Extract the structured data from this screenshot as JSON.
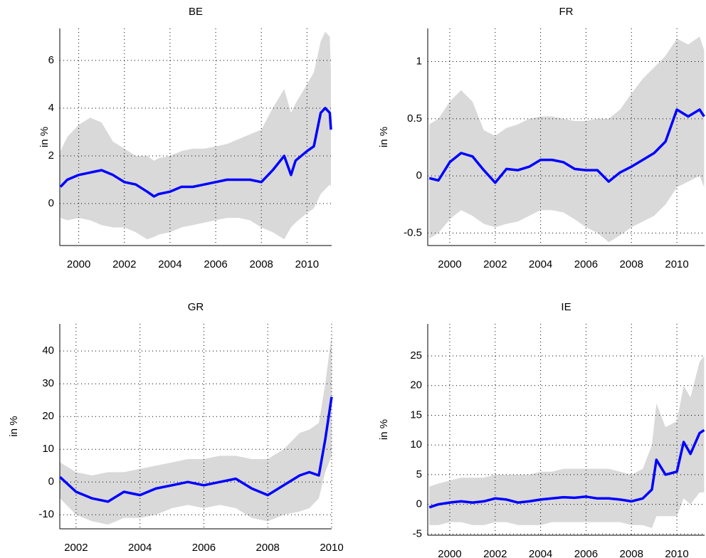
{
  "chart_data": [
    {
      "type": "line",
      "title": "BE",
      "ylabel": "in %",
      "grid": true,
      "xlim": [
        1999.17,
        2011.08
      ],
      "ylim": [
        -1.76,
        7.34
      ],
      "xticks": [
        2000,
        2002,
        2004,
        2006,
        2008,
        2010
      ],
      "yticks": [
        0,
        2,
        4,
        6
      ],
      "x": [
        1999.2,
        1999.5,
        2000,
        2000.5,
        2001,
        2001.5,
        2002,
        2002.5,
        2003,
        2003.3,
        2003.5,
        2004,
        2004.5,
        2005,
        2005.5,
        2006,
        2006.5,
        2007,
        2007.5,
        2008,
        2008.5,
        2009,
        2009.3,
        2009.5,
        2010,
        2010.3,
        2010.6,
        2010.8,
        2011,
        2011.05
      ],
      "band": {
        "color": "#d9d9d9",
        "upper": [
          2.2,
          2.8,
          3.3,
          3.6,
          3.4,
          2.6,
          2.3,
          2.0,
          2.0,
          1.8,
          1.9,
          2.0,
          2.2,
          2.3,
          2.3,
          2.4,
          2.5,
          2.7,
          2.9,
          3.1,
          4.0,
          4.8,
          3.8,
          4.2,
          5.0,
          5.5,
          6.8,
          7.2,
          7.0,
          5.5
        ],
        "lower": [
          -0.6,
          -0.7,
          -0.6,
          -0.7,
          -0.9,
          -1.0,
          -1.0,
          -1.2,
          -1.5,
          -1.4,
          -1.3,
          -1.2,
          -1.0,
          -0.9,
          -0.8,
          -0.7,
          -0.6,
          -0.6,
          -0.7,
          -1.0,
          -1.2,
          -1.5,
          -1.0,
          -0.8,
          -0.4,
          -0.2,
          0.4,
          0.6,
          0.8,
          0.7
        ]
      },
      "series": [
        {
          "color": "#0000ff",
          "values": [
            0.7,
            1.0,
            1.2,
            1.3,
            1.4,
            1.2,
            0.9,
            0.8,
            0.5,
            0.3,
            0.4,
            0.5,
            0.7,
            0.7,
            0.8,
            0.9,
            1.0,
            1.0,
            1.0,
            0.9,
            1.4,
            2.0,
            1.2,
            1.8,
            2.2,
            2.4,
            3.8,
            4.0,
            3.8,
            3.1
          ]
        }
      ]
    },
    {
      "type": "line",
      "title": "FR",
      "ylabel": "in %",
      "grid": true,
      "xlim": [
        1999.03,
        2011.22
      ],
      "ylim": [
        -0.61,
        1.29
      ],
      "xticks": [
        2000,
        2002,
        2004,
        2006,
        2008,
        2010
      ],
      "yticks": [
        -0.5,
        0,
        0.5,
        1
      ],
      "x": [
        1999.1,
        1999.5,
        2000,
        2000.5,
        2001,
        2001.5,
        2002,
        2002.5,
        2003,
        2003.5,
        2004,
        2004.5,
        2005,
        2005.5,
        2006,
        2006.5,
        2007,
        2007.5,
        2008,
        2008.5,
        2009,
        2009.5,
        2010,
        2010.5,
        2011,
        2011.2
      ],
      "band": {
        "color": "#d9d9d9",
        "upper": [
          0.45,
          0.5,
          0.65,
          0.75,
          0.65,
          0.4,
          0.35,
          0.42,
          0.45,
          0.5,
          0.52,
          0.52,
          0.5,
          0.48,
          0.48,
          0.5,
          0.5,
          0.58,
          0.72,
          0.85,
          0.95,
          1.05,
          1.2,
          1.15,
          1.22,
          1.1
        ],
        "lower": [
          -0.55,
          -0.5,
          -0.38,
          -0.3,
          -0.35,
          -0.42,
          -0.45,
          -0.42,
          -0.4,
          -0.35,
          -0.3,
          -0.3,
          -0.32,
          -0.38,
          -0.45,
          -0.5,
          -0.58,
          -0.52,
          -0.45,
          -0.4,
          -0.35,
          -0.25,
          -0.1,
          -0.05,
          0.0,
          -0.1
        ]
      },
      "series": [
        {
          "color": "#0000ff",
          "values": [
            -0.02,
            -0.04,
            0.12,
            0.2,
            0.17,
            0.05,
            -0.06,
            0.06,
            0.05,
            0.08,
            0.14,
            0.14,
            0.12,
            0.06,
            0.05,
            0.05,
            -0.05,
            0.03,
            0.08,
            0.14,
            0.2,
            0.3,
            0.58,
            0.52,
            0.58,
            0.52
          ]
        }
      ]
    },
    {
      "type": "line",
      "title": "GR",
      "ylabel": "in %",
      "grid": true,
      "xlim": [
        2001.49,
        2010.0
      ],
      "ylim": [
        -14.3,
        48.3
      ],
      "xticks": [
        2002,
        2004,
        2006,
        2008,
        2010
      ],
      "yticks": [
        -10,
        0,
        10,
        20,
        30,
        40
      ],
      "x": [
        2001.5,
        2002,
        2002.5,
        2003,
        2003.5,
        2004,
        2004.5,
        2005,
        2005.5,
        2006,
        2006.5,
        2007,
        2007.5,
        2008,
        2008.5,
        2009,
        2009.3,
        2009.6,
        2009.8,
        2010.0
      ],
      "band": {
        "color": "#d9d9d9",
        "upper": [
          6,
          3,
          2,
          3,
          3,
          4,
          5,
          6,
          7,
          7,
          8,
          8,
          7,
          7,
          10,
          15,
          16,
          18,
          30,
          45
        ],
        "lower": [
          -5,
          -10,
          -12,
          -13,
          -11,
          -11,
          -10,
          -8,
          -7,
          -8,
          -7,
          -8,
          -11,
          -12,
          -10,
          -9,
          -8,
          -5,
          3,
          8
        ]
      },
      "series": [
        {
          "color": "#0000ff",
          "values": [
            1.5,
            -3,
            -5,
            -6,
            -3,
            -4,
            -2,
            -1,
            0,
            -1,
            0,
            1,
            -2,
            -4,
            -1,
            2,
            3,
            2,
            13,
            26
          ]
        }
      ]
    },
    {
      "type": "line",
      "title": "IE",
      "ylabel": "in %",
      "grid": true,
      "xlim": [
        1999.03,
        2011.22
      ],
      "ylim": [
        -5.2,
        30.4
      ],
      "xticks": [
        2000,
        2002,
        2004,
        2006,
        2008,
        2010
      ],
      "yticks": [
        -5,
        0,
        5,
        10,
        15,
        20,
        25
      ],
      "x": [
        1999.1,
        1999.5,
        2000,
        2000.5,
        2001,
        2001.5,
        2002,
        2002.5,
        2003,
        2003.5,
        2004,
        2004.5,
        2005,
        2005.5,
        2006,
        2006.5,
        2007,
        2007.5,
        2008,
        2008.5,
        2008.9,
        2009.1,
        2009.5,
        2010,
        2010.3,
        2010.6,
        2011,
        2011.2
      ],
      "band": {
        "color": "#d9d9d9",
        "upper": [
          3,
          3.5,
          4,
          4.5,
          4.5,
          4.5,
          5,
          5,
          5,
          5,
          5.5,
          5.5,
          6,
          6,
          6,
          6,
          6,
          5.5,
          5,
          6,
          10,
          17,
          13,
          14,
          20,
          18,
          24,
          25
        ],
        "lower": [
          -3.5,
          -3.5,
          -3,
          -3,
          -3.5,
          -3.5,
          -3,
          -3,
          -3.5,
          -3.5,
          -3.5,
          -3,
          -3,
          -3,
          -3,
          -3,
          -3,
          -3,
          -3.5,
          -3.5,
          -4,
          -2,
          -2,
          -2,
          1,
          0,
          2,
          2
        ]
      },
      "series": [
        {
          "color": "#0000ff",
          "values": [
            -0.5,
            0,
            0.3,
            0.5,
            0.3,
            0.5,
            1,
            0.8,
            0.3,
            0.5,
            0.8,
            1,
            1.2,
            1.1,
            1.3,
            1,
            1,
            0.8,
            0.5,
            1,
            2.5,
            7.5,
            5,
            5.5,
            10.5,
            8.5,
            12,
            12.5
          ]
        }
      ]
    }
  ]
}
